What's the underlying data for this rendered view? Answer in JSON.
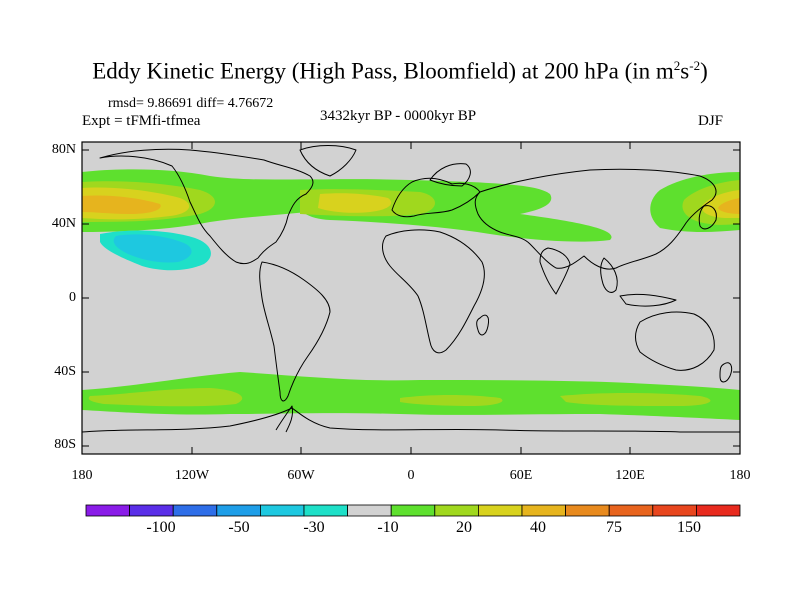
{
  "title": {
    "main": "Eddy Kinetic Energy (High Pass, Bloomfield) at 200 hPa (in m",
    "exp1": "2",
    "mid": "s",
    "exp2": "-2",
    "close": ")"
  },
  "stats": "rmsd= 9.86691 diff= 4.76672",
  "expt": "Expt = tFMfi-tfmea",
  "period": "3432kyr BP - 0000kyr BP",
  "season": "DJF",
  "y_axis_labels": [
    "80N",
    "40N",
    "0",
    "40S",
    "80S"
  ],
  "x_axis_labels": [
    "180",
    "120W",
    "60W",
    "0",
    "60E",
    "120E",
    "180"
  ],
  "colorbar": {
    "colors": [
      "#8a1ce8",
      "#5a2ee8",
      "#2e6ee8",
      "#1e9ee8",
      "#1ec8e0",
      "#1ee0c8",
      "#d2d2d2",
      "#5ee02e",
      "#a0d81e",
      "#d8d21e",
      "#e6b41e",
      "#e88a1e",
      "#e8641e",
      "#e8461e",
      "#e82a1e"
    ],
    "labels": [
      "-100",
      "-50",
      "-30",
      "-10",
      "20",
      "40",
      "75",
      "150"
    ]
  },
  "colors": {
    "land_gray": "#d2d2d2",
    "green": "#5ee02e",
    "lime": "#a0d81e",
    "yellow": "#d8d21e",
    "orange": "#e6b41e",
    "cyan": "#1ec8e0",
    "teal": "#1ee0c8"
  }
}
